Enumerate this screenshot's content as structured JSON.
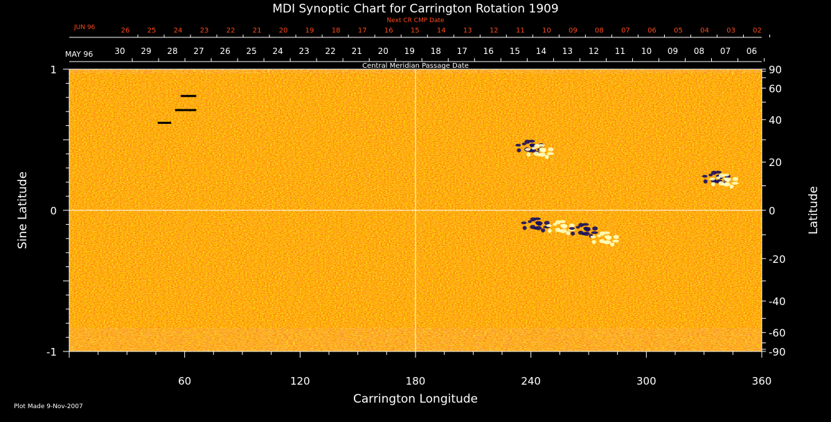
{
  "chart_data": {
    "type": "heatmap",
    "title": "MDI Synoptic Chart for Carrington Rotation 1909",
    "xlabel": "Carrington Longitude",
    "ylabel_left": "Sine Latitude",
    "ylabel_right": "Latitude",
    "xlim": [
      0,
      360
    ],
    "ylim_sine": [
      -1,
      1
    ],
    "x_ticks": [
      60,
      120,
      180,
      240,
      300,
      360
    ],
    "y_left_ticks": [
      1,
      0,
      -1
    ],
    "y_right_ticks": [
      90,
      60,
      40,
      20,
      0,
      -20,
      -40,
      -60,
      -90
    ],
    "background_color": "#ff5a10",
    "positive_polarity_color": "#ffffc0",
    "negative_polarity_color": "#1a1060",
    "active_regions": [
      {
        "polarity": "negative",
        "lon": 243,
        "sinlat": -0.1
      },
      {
        "polarity": "positive",
        "lon": 256,
        "sinlat": -0.12
      },
      {
        "polarity": "negative",
        "lon": 268,
        "sinlat": -0.14
      },
      {
        "polarity": "positive",
        "lon": 279,
        "sinlat": -0.2
      },
      {
        "polarity": "negative",
        "lon": 337,
        "sinlat": 0.23
      },
      {
        "polarity": "positive",
        "lon": 341,
        "sinlat": 0.21
      },
      {
        "polarity": "negative",
        "lon": 240,
        "sinlat": 0.45
      },
      {
        "polarity": "positive",
        "lon": 245,
        "sinlat": 0.42
      }
    ],
    "gap_marks": [
      {
        "lon_start": 58,
        "lon_end": 66,
        "sinlat": 0.81
      },
      {
        "lon_start": 55,
        "lon_end": 66,
        "sinlat": 0.71
      },
      {
        "lon_start": 46,
        "lon_end": 53,
        "sinlat": 0.62
      }
    ],
    "crosshair": {
      "lon": 180,
      "sinlat": 0
    }
  },
  "top_axis": {
    "next_label": "Next CR CMP Date",
    "next_month": "JUN 96",
    "next_dates": [
      "26",
      "25",
      "24",
      "23",
      "22",
      "21",
      "20",
      "19",
      "18",
      "17",
      "16",
      "15",
      "14",
      "13",
      "12",
      "11",
      "10",
      "09",
      "08",
      "07",
      "06",
      "05",
      "04",
      "03",
      "02"
    ],
    "cmp_label": "Central Meridian Passage Date",
    "cmp_month": "MAY 96",
    "cmp_dates": [
      "30",
      "29",
      "28",
      "27",
      "26",
      "25",
      "24",
      "23",
      "22",
      "21",
      "20",
      "19",
      "18",
      "17",
      "16",
      "15",
      "14",
      "13",
      "12",
      "11",
      "10",
      "09",
      "08",
      "07",
      "06"
    ]
  },
  "footer": {
    "plot_made": "Plot Made  9-Nov-2007"
  },
  "colors": {
    "axis": "#ffffff",
    "next_axis": "#ff4a1a"
  }
}
